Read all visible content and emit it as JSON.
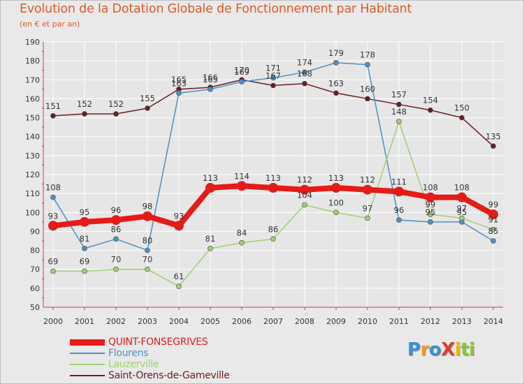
{
  "title": "Evolution de la Dotation Globale de Fonctionnement par Habitant",
  "subtitle": "(en € et par an)",
  "colors": {
    "title": "#e05a2b",
    "background": "#e8e8e8",
    "grid": "#ffffff",
    "axis": "#d04040"
  },
  "logo": {
    "text": "ProXiti",
    "letters": [
      "P",
      "r",
      "o",
      "X",
      "i",
      "t",
      "i"
    ],
    "letter_colors": [
      "#3a8fd8",
      "#f39a1e",
      "#3a8fd8",
      "#e23b2e",
      "#f0b400",
      "#8ac43f",
      "#8ac43f"
    ]
  },
  "chart_data": {
    "type": "line",
    "title": "Evolution de la Dotation Globale de Fonctionnement par Habitant",
    "subtitle": "(en € et par an)",
    "xlabel": "",
    "ylabel": "",
    "ylim": [
      50,
      190
    ],
    "yticks": [
      50,
      60,
      70,
      80,
      90,
      100,
      110,
      120,
      130,
      140,
      150,
      160,
      170,
      180,
      190
    ],
    "grid": true,
    "legend_position": "bottom-left",
    "x": [
      "2000",
      "2001",
      "2002",
      "2003",
      "2004",
      "2005",
      "2006",
      "2007",
      "2008",
      "2009",
      "2010",
      "2011",
      "2012",
      "2013",
      "2014"
    ],
    "series": [
      {
        "name": "Saint-Orens-de-Gameville",
        "color": "#6b1c20",
        "values": [
          151,
          152,
          152,
          155,
          165,
          166,
          170,
          167,
          168,
          163,
          160,
          157,
          154,
          150,
          135
        ],
        "labels": [
          "151",
          "152",
          "152",
          "155",
          "165",
          "166",
          "170",
          "167",
          "168",
          "163",
          "160",
          "157",
          "154",
          "150",
          "135"
        ]
      },
      {
        "name": "Flourens",
        "color": "#4a90c8",
        "values": [
          108,
          81,
          86,
          80,
          163,
          165,
          169,
          171,
          174,
          179,
          178,
          96,
          95,
          95,
          85
        ],
        "labels": [
          "108",
          "81",
          "86",
          "80",
          "163",
          "165",
          "169",
          "171",
          "174",
          "179",
          "178",
          "96",
          "95",
          "95",
          "85"
        ]
      },
      {
        "name": "Lauzerville",
        "color": "#9fd06f",
        "values": [
          69,
          69,
          70,
          70,
          61,
          81,
          84,
          86,
          104,
          100,
          97,
          148,
          99,
          97,
          91
        ],
        "labels": [
          "69",
          "69",
          "70",
          "70",
          "61",
          "81",
          "84",
          "86",
          "104",
          "100",
          "97",
          "148",
          "99",
          "97",
          "91"
        ]
      },
      {
        "name": "QUINT-FONSEGRIVES",
        "color": "#e41b17",
        "values": [
          93,
          95,
          96,
          98,
          93,
          113,
          114,
          113,
          112,
          113,
          112,
          111,
          108,
          108,
          99
        ],
        "labels": [
          "93",
          "95",
          "96",
          "98",
          "93",
          "113",
          "114",
          "113",
          "112",
          "113",
          "112",
          "111",
          "108",
          "108",
          "99"
        ]
      }
    ],
    "legend": [
      {
        "name": "QUINT-FONSEGRIVES",
        "color": "#e41b17"
      },
      {
        "name": "Flourens",
        "color": "#4a90c8"
      },
      {
        "name": "Lauzerville",
        "color": "#9fd06f"
      },
      {
        "name": "Saint-Orens-de-Gameville",
        "color": "#6b1c20"
      }
    ]
  }
}
